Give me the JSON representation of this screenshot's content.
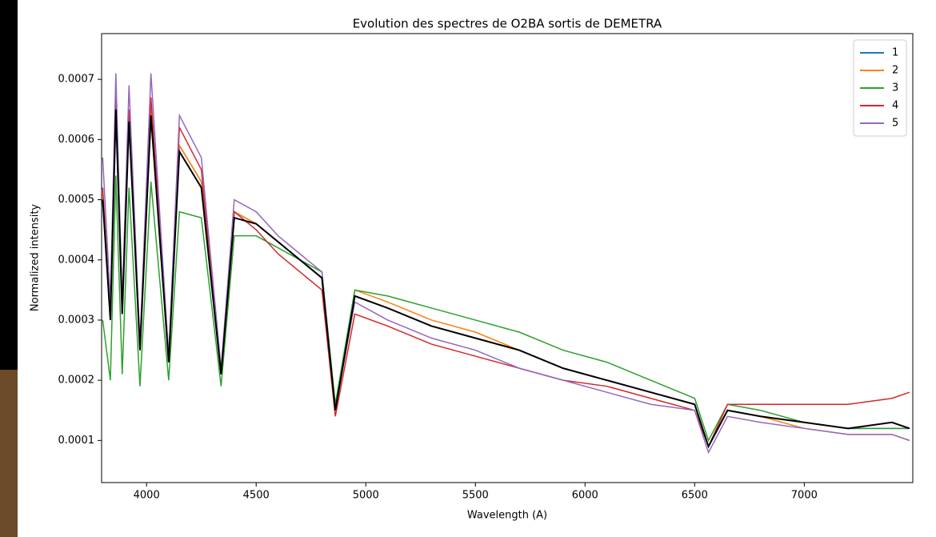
{
  "chart_data": {
    "type": "line",
    "title": "Evolution des spectres de O2BA sortis de DEMETRA",
    "x_label": "Wavelength (A)",
    "y_label": "Normalized intensity",
    "x": [
      3800,
      3835,
      3860,
      3889,
      3920,
      3970,
      4020,
      4101,
      4150,
      4250,
      4340,
      4400,
      4500,
      4600,
      4700,
      4800,
      4861,
      4950,
      5100,
      5300,
      5500,
      5700,
      5900,
      6100,
      6300,
      6500,
      6563,
      6650,
      6800,
      7000,
      7200,
      7400,
      7480
    ],
    "series": [
      {
        "name": "1",
        "color": "#1f77b4",
        "values": [
          0.0005,
          0.0003,
          0.00066,
          0.00031,
          0.00064,
          0.00025,
          0.00065,
          0.00023,
          0.00059,
          0.00053,
          0.00021,
          0.00048,
          0.00046,
          0.00043,
          0.0004,
          0.00037,
          0.00015,
          0.00034,
          0.00032,
          0.00029,
          0.00027,
          0.00025,
          0.00022,
          0.0002,
          0.00018,
          0.00016,
          9e-05,
          0.00015,
          0.00014,
          0.00013,
          0.00012,
          0.00012,
          0.00012
        ]
      },
      {
        "name": "2",
        "color": "#ff7f0e",
        "values": [
          0.00051,
          0.00031,
          0.00068,
          0.00032,
          0.00064,
          0.00025,
          0.00066,
          0.00023,
          0.00059,
          0.00053,
          0.00021,
          0.00048,
          0.00046,
          0.00043,
          0.0004,
          0.00037,
          0.00015,
          0.00035,
          0.00033,
          0.0003,
          0.00028,
          0.00025,
          0.00022,
          0.0002,
          0.00018,
          0.00016,
          9e-05,
          0.00015,
          0.00014,
          0.00012,
          0.00011,
          0.00011,
          0.0001
        ]
      },
      {
        "name": "3",
        "color": "#2ca02c",
        "values": [
          0.0003,
          0.0002,
          0.00054,
          0.00021,
          0.00052,
          0.00019,
          0.00053,
          0.0002,
          0.00048,
          0.00047,
          0.00019,
          0.00044,
          0.00044,
          0.00042,
          0.0004,
          0.00038,
          0.00016,
          0.00035,
          0.00034,
          0.00032,
          0.0003,
          0.00028,
          0.00025,
          0.00023,
          0.0002,
          0.00017,
          0.0001,
          0.00016,
          0.00015,
          0.00013,
          0.00012,
          0.00012,
          0.00012
        ]
      },
      {
        "name": "4",
        "color": "#d62728",
        "values": [
          0.00052,
          0.00031,
          0.00069,
          0.00032,
          0.00065,
          0.00026,
          0.00067,
          0.00024,
          0.00062,
          0.00055,
          0.00021,
          0.00048,
          0.00045,
          0.00041,
          0.00038,
          0.00035,
          0.00014,
          0.00031,
          0.00029,
          0.00026,
          0.00024,
          0.00022,
          0.0002,
          0.00019,
          0.00017,
          0.00015,
          9e-05,
          0.00016,
          0.00016,
          0.00016,
          0.00016,
          0.00017,
          0.00018
        ]
      },
      {
        "name": "5",
        "color": "#9467bd",
        "values": [
          0.00057,
          0.00033,
          0.00071,
          0.00033,
          0.00069,
          0.00026,
          0.00071,
          0.00024,
          0.00064,
          0.00057,
          0.00022,
          0.0005,
          0.00048,
          0.00044,
          0.00041,
          0.00038,
          0.00015,
          0.00033,
          0.0003,
          0.00027,
          0.00025,
          0.00022,
          0.0002,
          0.00018,
          0.00016,
          0.00015,
          8e-05,
          0.00014,
          0.00013,
          0.00012,
          0.00011,
          0.00011,
          0.0001
        ]
      },
      {
        "color": "#000000",
        "values": [
          0.0005,
          0.0003,
          0.00065,
          0.00031,
          0.00063,
          0.00025,
          0.00064,
          0.00023,
          0.00058,
          0.00052,
          0.00021,
          0.00047,
          0.00046,
          0.00043,
          0.0004,
          0.00037,
          0.00015,
          0.00034,
          0.00032,
          0.00029,
          0.00027,
          0.00025,
          0.00022,
          0.0002,
          0.00018,
          0.00016,
          9e-05,
          0.00015,
          0.00014,
          0.00013,
          0.00012,
          0.00013,
          0.00012
        ]
      }
    ],
    "xlim": [
      3795,
      7495
    ],
    "xticks": [
      4000,
      4500,
      5000,
      5500,
      6000,
      6500,
      7000
    ],
    "ylim": [
      3e-05,
      0.000776
    ],
    "yticks": [
      0.0001,
      0.0002,
      0.0003,
      0.0004,
      0.0005,
      0.0006,
      0.0007
    ],
    "legend": "upper right",
    "grid": false
  }
}
